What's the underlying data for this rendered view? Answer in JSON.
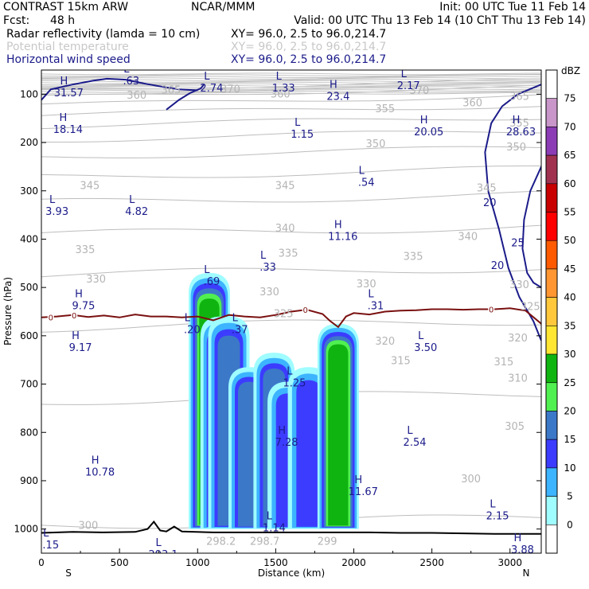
{
  "header": {
    "model": "CONTRAST 15km ARW",
    "center": "NCAR/MMM",
    "init": "Init: 00 UTC Tue 11 Feb 14",
    "fcst_label": "Fcst:",
    "fcst_value": "48 h",
    "valid": "Valid: 00 UTC Thu 13 Feb 14 (10 ChT Thu 13 Feb 14)",
    "fields": [
      {
        "name": "Radar reflectivity (lamda = 10 cm)",
        "xy": "XY=  96.0,  2.5 to  96.0,214.7",
        "color": "#000000"
      },
      {
        "name": "Potential temperature",
        "xy": "XY=  96.0,  2.5 to  96.0,214.7",
        "color": "#c8c8c8"
      },
      {
        "name": "Horizontal wind speed",
        "xy": "XY=  96.0,  2.5 to  96.0,214.7",
        "color": "#1b1b8a"
      }
    ]
  },
  "chart_data": {
    "type": "contour",
    "xlabel": "Distance (km)",
    "ylabel": "Pressure (hPa)",
    "xlim": [
      0,
      3200
    ],
    "ylim": [
      1050,
      50
    ],
    "xticks": [
      0,
      500,
      1000,
      1500,
      2000,
      2500,
      3000
    ],
    "yticks": [
      100,
      200,
      300,
      400,
      500,
      600,
      700,
      800,
      900,
      1000
    ],
    "x_end_labels": {
      "left": "S",
      "right": "N"
    },
    "colorbar": {
      "units": "dBZ",
      "levels": [
        0,
        5,
        10,
        15,
        20,
        25,
        30,
        35,
        40,
        45,
        50,
        55,
        60,
        65,
        70,
        75
      ],
      "colors": [
        "#ffffff",
        "#9ffcff",
        "#3cb4ff",
        "#3c3cff",
        "#3c78c8",
        "#50f050",
        "#10b410",
        "#ffe632",
        "#ffc83c",
        "#ff9632",
        "#ff5a00",
        "#ff0000",
        "#c80000",
        "#a03250",
        "#8c3cb4",
        "#c896c8"
      ]
    },
    "reflectivity_cells": [
      {
        "x": 1075,
        "p_top": 470,
        "p_bot": 1000,
        "max_dbz": 30
      },
      {
        "x": 1150,
        "p_top": 560,
        "p_bot": 1000,
        "max_dbz": 20
      },
      {
        "x": 1200,
        "p_top": 560,
        "p_bot": 1000,
        "max_dbz": 20
      },
      {
        "x": 1330,
        "p_top": 665,
        "p_bot": 1000,
        "max_dbz": 20
      },
      {
        "x": 1490,
        "p_top": 635,
        "p_bot": 1000,
        "max_dbz": 20
      },
      {
        "x": 1580,
        "p_top": 695,
        "p_bot": 1000,
        "max_dbz": 15
      },
      {
        "x": 1710,
        "p_top": 665,
        "p_bot": 1000,
        "max_dbz": 15
      },
      {
        "x": 1900,
        "p_top": 575,
        "p_bot": 1000,
        "max_dbz": 30
      }
    ],
    "theta_levels": [
      300,
      305,
      310,
      315,
      320,
      325,
      330,
      335,
      340,
      345,
      350,
      355,
      360,
      365,
      370
    ],
    "theta_labels": [
      {
        "text": "300",
        "x": 300,
        "p": 993
      },
      {
        "text": "300",
        "x": 2750,
        "p": 897
      },
      {
        "text": "305",
        "x": 3030,
        "p": 788
      },
      {
        "text": "310",
        "x": 3050,
        "p": 688
      },
      {
        "text": "315",
        "x": 2300,
        "p": 652
      },
      {
        "text": "315",
        "x": 2960,
        "p": 655
      },
      {
        "text": "320",
        "x": 2200,
        "p": 612
      },
      {
        "text": "320",
        "x": 3050,
        "p": 605
      },
      {
        "text": "325",
        "x": 1550,
        "p": 555
      },
      {
        "text": "325",
        "x": 3130,
        "p": 540
      },
      {
        "text": "330",
        "x": 350,
        "p": 483
      },
      {
        "text": "330",
        "x": 1460,
        "p": 510
      },
      {
        "text": "330",
        "x": 2080,
        "p": 493
      },
      {
        "text": "330",
        "x": 3060,
        "p": 495
      },
      {
        "text": "335",
        "x": 280,
        "p": 422
      },
      {
        "text": "335",
        "x": 1580,
        "p": 430
      },
      {
        "text": "335",
        "x": 2380,
        "p": 436
      },
      {
        "text": "340",
        "x": 1560,
        "p": 378
      },
      {
        "text": "340",
        "x": 2730,
        "p": 395
      },
      {
        "text": "345",
        "x": 310,
        "p": 290
      },
      {
        "text": "345",
        "x": 1560,
        "p": 290
      },
      {
        "text": "345",
        "x": 2850,
        "p": 295
      },
      {
        "text": "350",
        "x": 2140,
        "p": 203
      },
      {
        "text": "350",
        "x": 3040,
        "p": 210
      },
      {
        "text": "355",
        "x": 2200,
        "p": 131
      },
      {
        "text": "355",
        "x": 3060,
        "p": 160
      },
      {
        "text": "360",
        "x": 610,
        "p": 103
      },
      {
        "text": "360",
        "x": 1530,
        "p": 100
      },
      {
        "text": "360",
        "x": 2760,
        "p": 118
      },
      {
        "text": "365",
        "x": 830,
        "p": 92
      },
      {
        "text": "365",
        "x": 3060,
        "p": 105
      },
      {
        "text": "370",
        "x": 1210,
        "p": 90
      },
      {
        "text": "370",
        "x": 2420,
        "p": 93
      }
    ],
    "freezing_level": {
      "label": "0",
      "x": [
        0,
        100,
        200,
        300,
        400,
        500,
        600,
        700,
        800,
        900,
        1000,
        1100,
        1200,
        1300,
        1400,
        1500,
        1600,
        1700,
        1800,
        1850,
        1900,
        1950,
        2000,
        2100,
        2200,
        2300,
        2400,
        2500,
        2600,
        2700,
        2800,
        2900,
        3000,
        3100,
        3200
      ],
      "p": [
        562,
        560,
        557,
        561,
        558,
        562,
        556,
        560,
        560,
        562,
        560,
        568,
        557,
        560,
        562,
        557,
        550,
        546,
        555,
        570,
        582,
        560,
        553,
        556,
        550,
        548,
        547,
        545,
        545,
        546,
        545,
        545,
        543,
        548,
        575
      ]
    },
    "surface": {
      "x": [
        0,
        200,
        400,
        600,
        680,
        720,
        760,
        800,
        850,
        900,
        1100,
        1300,
        1500,
        1700,
        1900,
        2100,
        2300,
        2500,
        2700,
        2900,
        3100,
        3200
      ],
      "p": [
        1008,
        1006,
        1007,
        1006,
        1000,
        985,
        1003,
        1005,
        995,
        1005,
        1007,
        1007,
        1007,
        1007,
        1007,
        1007,
        1008,
        1008,
        1009,
        1010,
        1010,
        1010
      ]
    },
    "wind_contours": [
      {
        "level": 20,
        "x": [
          0,
          60,
          200,
          330,
          420,
          540,
          660,
          780,
          880,
          1000
        ],
        "p": [
          112,
          90,
          80,
          72,
          68,
          70,
          78,
          85,
          90,
          92
        ]
      },
      {
        "level": 20,
        "x": [
          800,
          880,
          950,
          1020,
          1040
        ],
        "p": [
          132,
          112,
          98,
          88,
          80
        ]
      },
      {
        "level": 20,
        "x": [
          3200,
          3050,
          2950,
          2880,
          2840,
          2860,
          2930,
          2990,
          3060,
          3150,
          3200
        ],
        "p": [
          80,
          100,
          125,
          160,
          220,
          300,
          380,
          460,
          520,
          570,
          610
        ]
      },
      {
        "level": 25,
        "x": [
          3200,
          3130,
          3090,
          3080,
          3110,
          3150,
          3200
        ],
        "p": [
          250,
          300,
          360,
          420,
          470,
          490,
          500
        ]
      }
    ],
    "wind_labels": [
      {
        "text": "20",
        "x": 2870,
        "p": 325
      },
      {
        "text": "20",
        "x": 2920,
        "p": 455
      },
      {
        "text": "25",
        "x": 3050,
        "p": 408
      }
    ],
    "extrema": [
      {
        "type": "H",
        "value": "31.57",
        "x": 175,
        "p": 85
      },
      {
        "type": "L",
        "value": ".63",
        "x": 575,
        "p": 60
      },
      {
        "type": "L",
        "value": "2.74",
        "x": 1090,
        "p": 75
      },
      {
        "type": "L",
        "value": "1.33",
        "x": 1550,
        "p": 75
      },
      {
        "type": "H",
        "value": "23.4",
        "x": 1900,
        "p": 92
      },
      {
        "type": "L",
        "value": "2.17",
        "x": 2350,
        "p": 70
      },
      {
        "type": "H",
        "value": "18.14",
        "x": 170,
        "p": 160
      },
      {
        "type": "L",
        "value": "1.15",
        "x": 1670,
        "p": 170
      },
      {
        "type": "H",
        "value": "20.05",
        "x": 2480,
        "p": 165
      },
      {
        "type": "H",
        "value": "28.63",
        "x": 3070,
        "p": 165
      },
      {
        "type": "L",
        "value": ".54",
        "x": 2080,
        "p": 270
      },
      {
        "type": "L",
        "value": "3.93",
        "x": 100,
        "p": 330
      },
      {
        "type": "L",
        "value": "4.82",
        "x": 610,
        "p": 330
      },
      {
        "type": "H",
        "value": "11.16",
        "x": 1930,
        "p": 382
      },
      {
        "type": "L",
        "value": ".33",
        "x": 1450,
        "p": 445
      },
      {
        "type": "L",
        "value": ".69",
        "x": 1090,
        "p": 475
      },
      {
        "type": "H",
        "value": "9.75",
        "x": 270,
        "p": 525
      },
      {
        "type": "L",
        "value": ".31",
        "x": 2140,
        "p": 525
      },
      {
        "type": "L",
        "value": ".20",
        "x": 965,
        "p": 575
      },
      {
        "type": "L",
        "value": ".37",
        "x": 1270,
        "p": 575
      },
      {
        "type": "H",
        "value": "9.17",
        "x": 250,
        "p": 612
      },
      {
        "type": "L",
        "value": "3.50",
        "x": 2460,
        "p": 612
      },
      {
        "type": "L",
        "value": "1.25",
        "x": 1620,
        "p": 685
      },
      {
        "type": "H",
        "value": "7.28",
        "x": 1570,
        "p": 808
      },
      {
        "type": "L",
        "value": "2.54",
        "x": 2390,
        "p": 808
      },
      {
        "type": "H",
        "value": "10.78",
        "x": 375,
        "p": 870
      },
      {
        "type": "H",
        "value": "11.67",
        "x": 2060,
        "p": 910
      },
      {
        "type": "L",
        "value": "2.15",
        "x": 2920,
        "p": 960
      },
      {
        "type": "L",
        "value": "1.14",
        "x": 1490,
        "p": 985
      },
      {
        "type": "L",
        "value": ".15",
        "x": 60,
        "p": 1020
      },
      {
        "type": "L",
        "value": "293.1",
        "x": 780,
        "p": 1040
      },
      {
        "type": "H",
        "value": "3.88",
        "x": 3080,
        "p": 1030
      }
    ],
    "surface_values": [
      {
        "text": "298.2",
        "x": 1150,
        "p": 1033
      },
      {
        "text": "298.7",
        "x": 1430,
        "p": 1033
      },
      {
        "text": "299",
        "x": 1830,
        "p": 1033
      }
    ]
  }
}
